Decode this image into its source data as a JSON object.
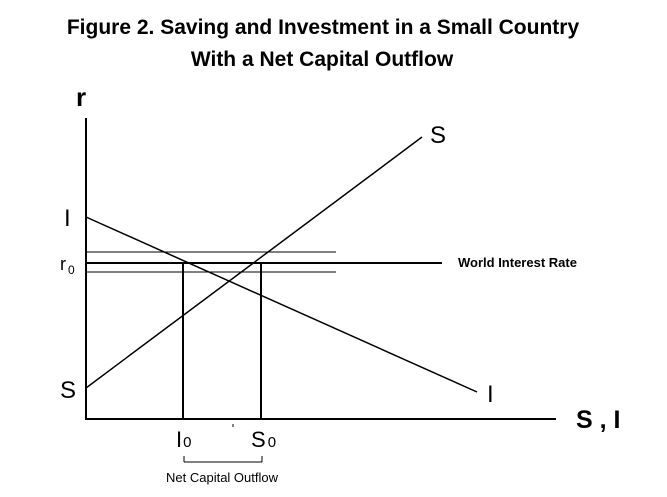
{
  "title_line1": "Figure 2.  Saving and Investment in a Small Country",
  "title_line2": "With a Net Capital Outflow",
  "y_axis_label": "r",
  "x_axis_label": "S , I",
  "saving_curve_top_label": "S",
  "saving_curve_bottom_label": "S",
  "investment_curve_top_label": "I",
  "investment_curve_bottom_label": "I",
  "r0_label": {
    "main": "r",
    "sub": "0"
  },
  "world_rate_label": "World Interest Rate",
  "i0_label": {
    "main": "I",
    "sub": "0"
  },
  "s0_label": {
    "main": "S",
    "sub": "0"
  },
  "net_capital_outflow_label": "Net Capital Outflow"
}
